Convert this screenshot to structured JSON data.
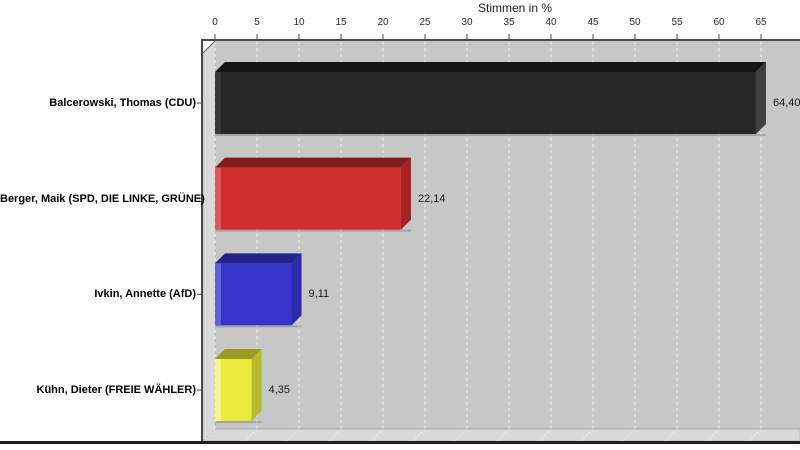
{
  "chart_data": {
    "type": "bar",
    "orientation": "horizontal",
    "style": "3d",
    "title": "Stimmen in %",
    "xlabel": "Stimmen in %",
    "ylabel": "",
    "xlim": [
      0,
      65
    ],
    "tick_step": 5,
    "tick_labels": [
      "0",
      "5",
      "10",
      "15",
      "20",
      "25",
      "30",
      "35",
      "40",
      "45",
      "50",
      "55",
      "60",
      "65"
    ],
    "grid": "white-dashed-vertical",
    "legend": "none",
    "categories": [
      "Balcerowski, Thomas (CDU)",
      "Berger, Maik (SPD, DIE LINKE, GRÜNE)",
      "Ivkin, Annette (AfD)",
      "Kühn, Dieter (FREIE WÄHLER)"
    ],
    "values": [
      64.4,
      22.14,
      9.11,
      4.35
    ],
    "value_labels": [
      "64,40",
      "22,14",
      "9,11",
      "4,35"
    ],
    "bars": [
      {
        "label": "Balcerowski, Thomas (CDU)",
        "value": 64.4,
        "value_label": "64,40",
        "party_color_name": "black (CDU)",
        "color": {
          "front": "#272727",
          "top": "#151515",
          "side": "#3f3f3f",
          "edge": "#383838"
        }
      },
      {
        "label": "Berger, Maik (SPD, DIE LINKE, GRÜNE)",
        "value": 22.14,
        "value_label": "22,14",
        "party_color_name": "red (SPD/LINKE/GRÜNE)",
        "color": {
          "front": "#d02e2e",
          "top": "#811d1d",
          "side": "#a42323",
          "edge": "#dd5858"
        }
      },
      {
        "label": "Ivkin, Annette (AfD)",
        "value": 9.11,
        "value_label": "9,11",
        "party_color_name": "blue (AfD)",
        "color": {
          "front": "#3434cb",
          "top": "#23238c",
          "side": "#2b2bab",
          "edge": "#6060d8"
        }
      },
      {
        "label": "Kühn, Dieter (FREIE WÄHLER)",
        "value": 4.35,
        "value_label": "4,35",
        "party_color_name": "yellow (FREIE WÄHLER)",
        "color": {
          "front": "#ebeb3d",
          "top": "#9a9a26",
          "side": "#b9b92e",
          "edge": "#f6f68d"
        }
      }
    ]
  },
  "colors": {
    "page_bg": "#ffffff",
    "plot_bg": "#c7c7c7",
    "wall": "#d9d9d9",
    "gridline": "#ffffff",
    "axis_line": "#4a4a4a",
    "tick_text": "#2b2b2b",
    "bottom_rule": "#1f1f1f"
  }
}
